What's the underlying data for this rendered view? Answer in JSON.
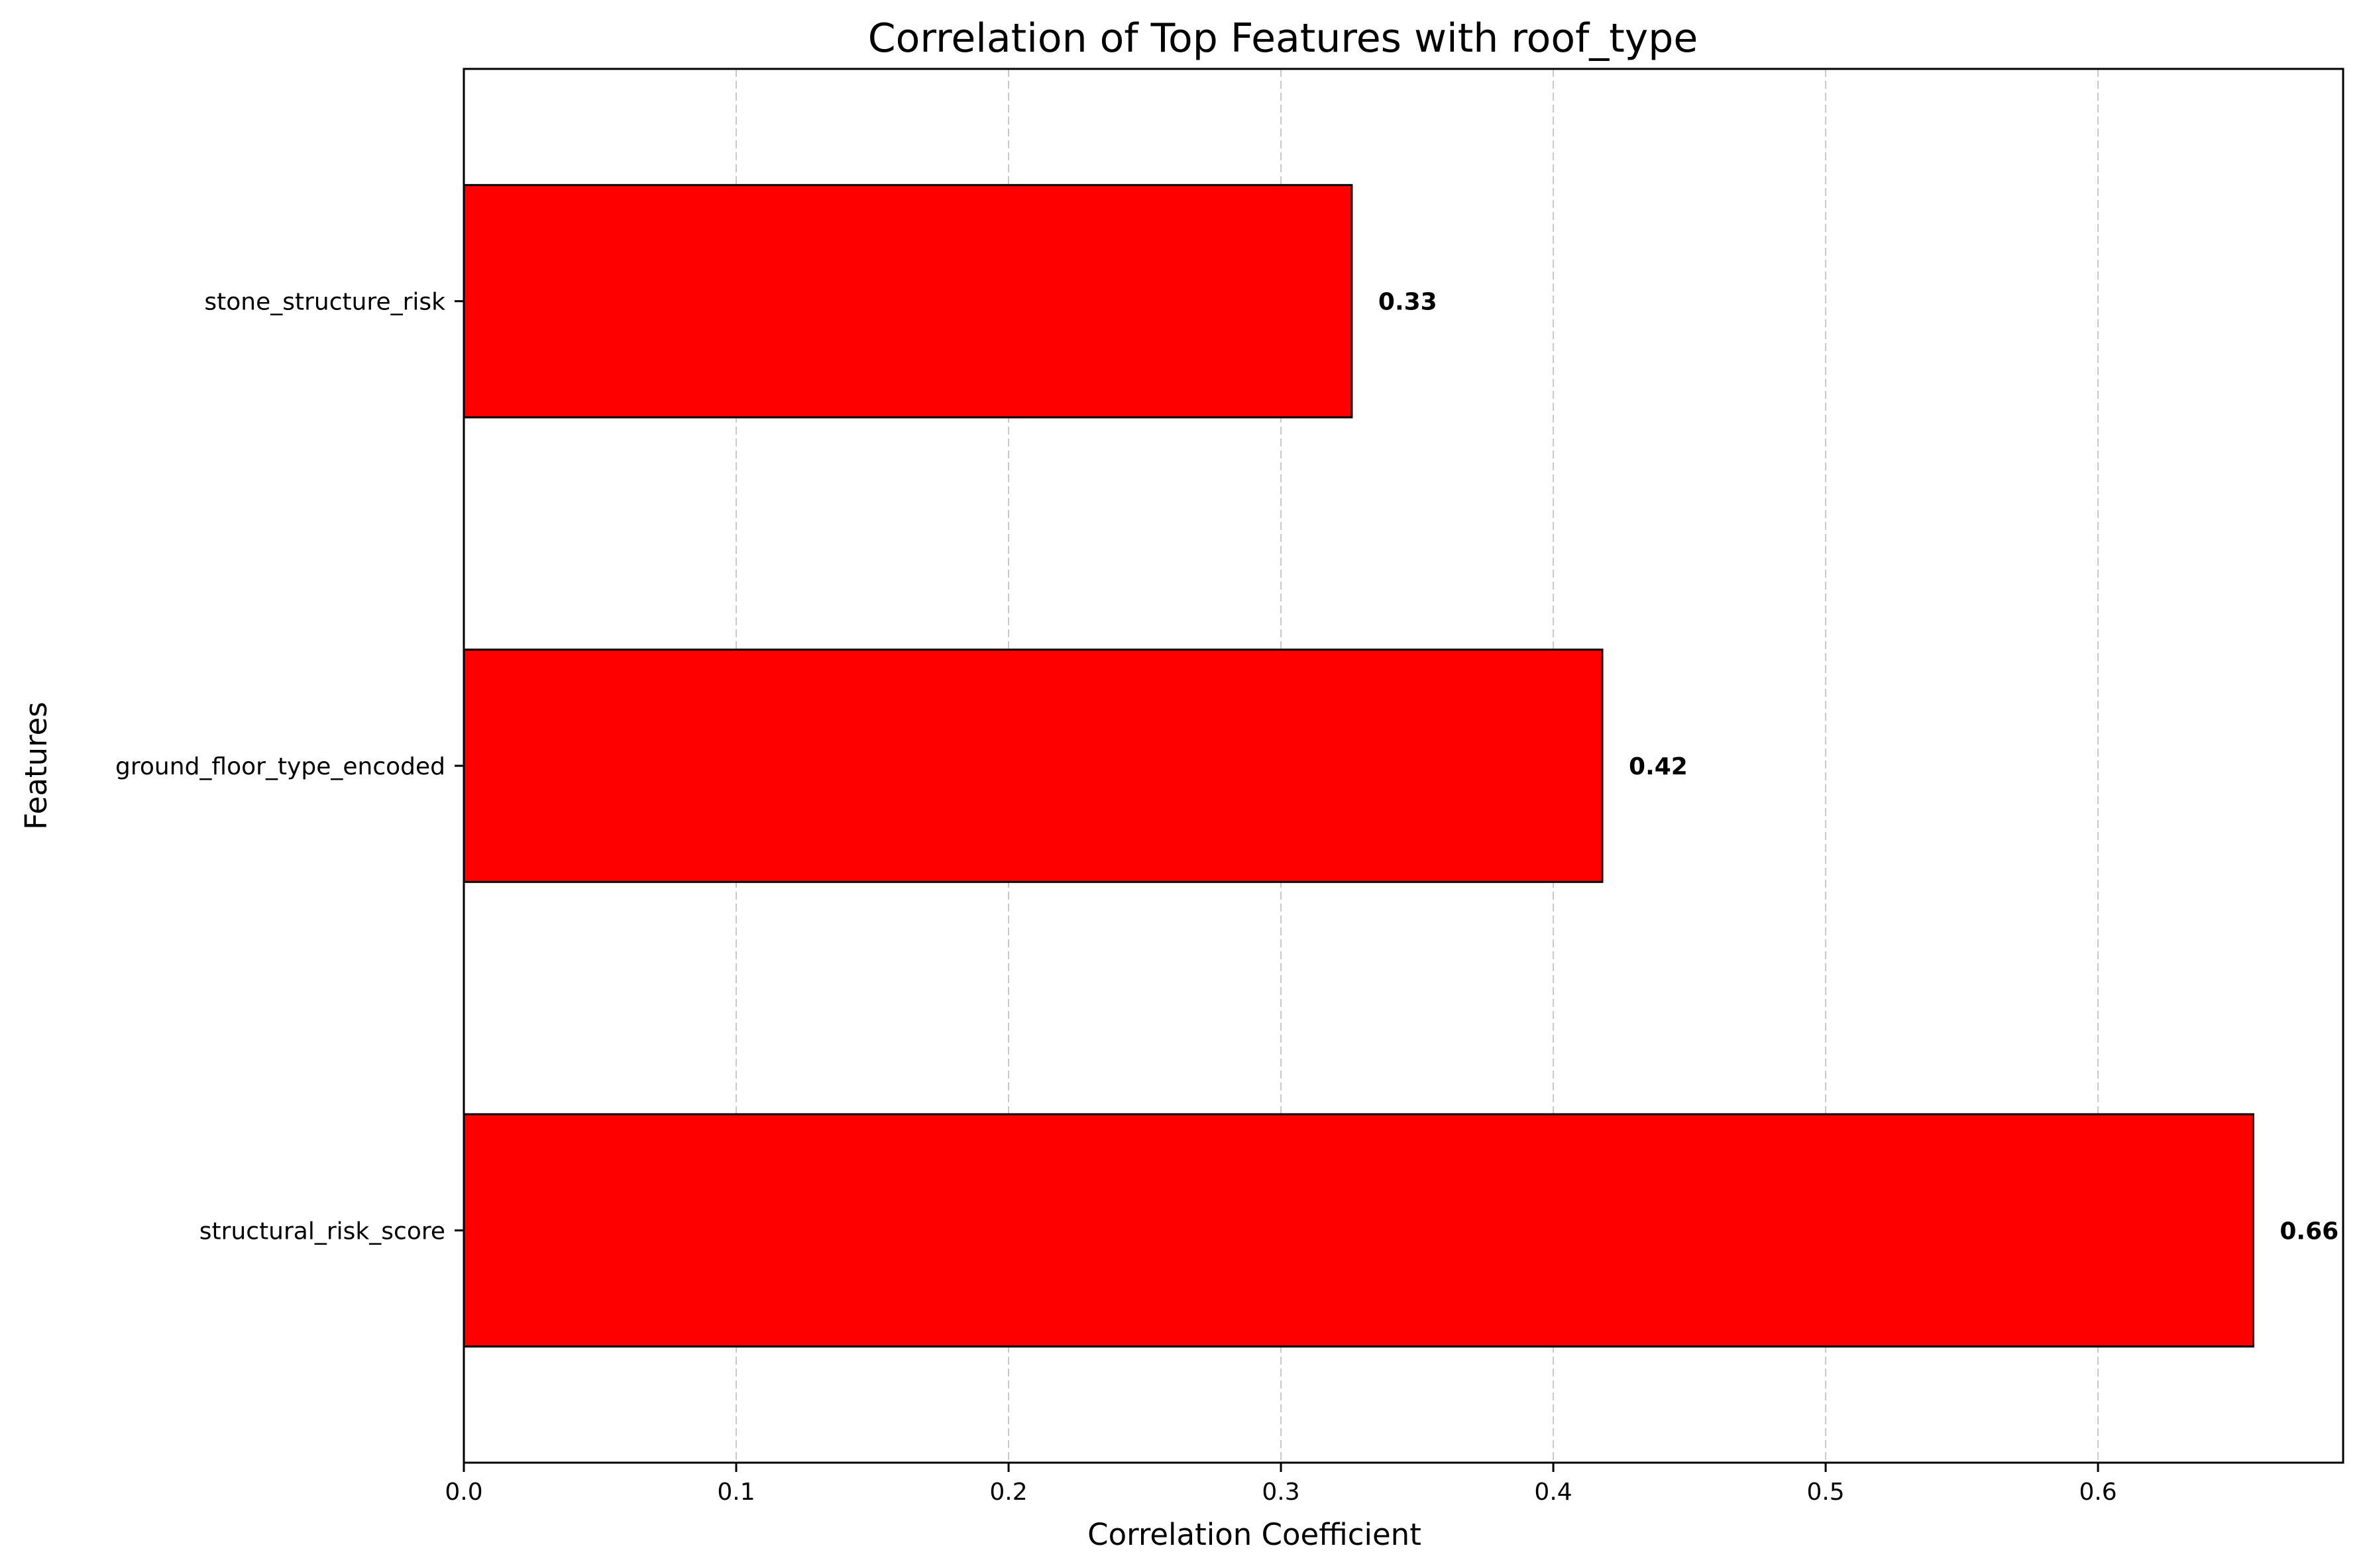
{
  "chart_data": {
    "type": "bar",
    "orientation": "horizontal",
    "title": "Correlation of Top Features with roof_type",
    "xlabel": "Correlation Coefficient",
    "ylabel": "Features",
    "categories": [
      "structural_risk_score",
      "ground_floor_type_encoded",
      "stone_structure_risk"
    ],
    "values": [
      0.657,
      0.418,
      0.326
    ],
    "value_labels": [
      "0.66",
      "0.42",
      "0.33"
    ],
    "xlim": [
      0,
      0.69
    ],
    "xticks": [
      "0.0",
      "0.1",
      "0.2",
      "0.3",
      "0.4",
      "0.5",
      "0.6"
    ],
    "grid": "x-dashed",
    "legend": "none",
    "bar_color": "#ff0000",
    "bar_edge_color": "#000000",
    "grid_color": "#b0b0b0"
  }
}
